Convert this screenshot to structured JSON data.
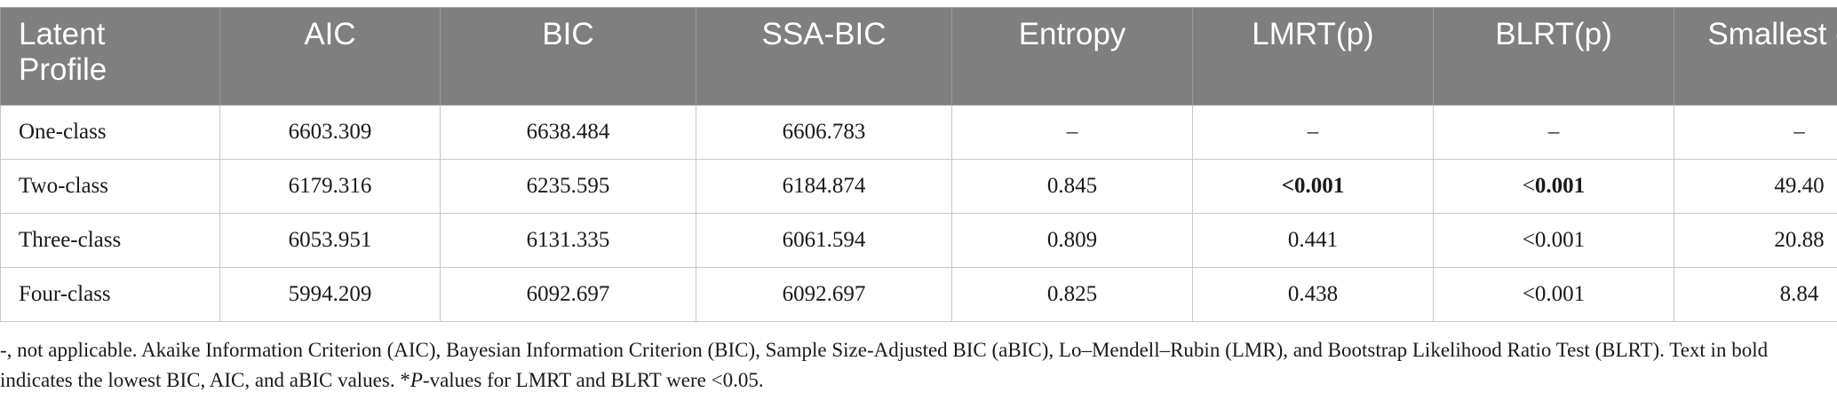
{
  "table": {
    "headers": [
      "Latent Profile",
      "AIC",
      "BIC",
      "SSA-BIC",
      "Entropy",
      "LMRT(p)",
      "BLRT(p)",
      "Smallest class (%)"
    ],
    "rows": [
      {
        "label": "One-class",
        "aic": "6603.309",
        "bic": "6638.484",
        "ssa_bic": "6606.783",
        "entropy": "–",
        "lmrt": "–",
        "blrt": "–",
        "smallest": "–"
      },
      {
        "label": "Two-class",
        "aic": "6179.316",
        "bic": "6235.595",
        "ssa_bic": "6184.874",
        "entropy": "0.845",
        "lmrt": "<0.001",
        "blrt_prefix": "<",
        "blrt_value": "0.001",
        "smallest": "49.40"
      },
      {
        "label": "Three-class",
        "aic": "6053.951",
        "bic": "6131.335",
        "ssa_bic": "6061.594",
        "entropy": "0.809",
        "lmrt": "0.441",
        "blrt": "<0.001",
        "smallest": "20.88"
      },
      {
        "label": "Four-class",
        "aic": "5994.209",
        "bic": "6092.697",
        "ssa_bic": "6092.697",
        "entropy": "0.825",
        "lmrt": "0.438",
        "blrt": "<0.001",
        "smallest": "8.84"
      }
    ]
  },
  "footnote": {
    "text_before_italic": "-, not applicable. Akaike Information Criterion (AIC), Bayesian Information Criterion (BIC), Sample Size-Adjusted BIC (aBIC), Lo–Mendell–Rubin (LMR), and Bootstrap Likelihood Ratio Test (BLRT). Text in bold indicates the lowest BIC, AIC, and aBIC values. *",
    "italic": "P",
    "text_after_italic": "-values for LMRT and BLRT were <0.05."
  },
  "colors": {
    "header_background": "#7f7f7f",
    "header_text": "#ffffff",
    "grid_line": "#c7c7c7"
  }
}
